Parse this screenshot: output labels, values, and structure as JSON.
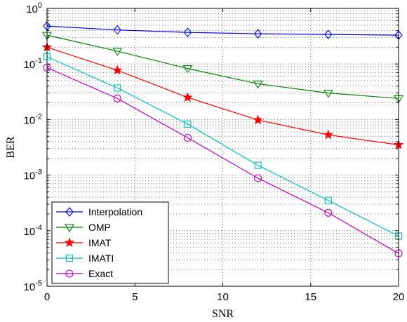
{
  "chart_data": {
    "type": "line",
    "xlabel": "SNR",
    "ylabel": "BER",
    "xlim": [
      0,
      20
    ],
    "ylim": [
      1e-05,
      1
    ],
    "yscale": "log",
    "grid": true,
    "legend_position": "bottom-left",
    "x": [
      0,
      4,
      8,
      12,
      16,
      20
    ],
    "x_ticks": [
      "0",
      "5",
      "10",
      "15",
      "20"
    ],
    "x_tick_values": [
      0,
      5,
      10,
      15,
      20
    ],
    "y_ticks": [
      {
        "value": 1e-05,
        "base": "10",
        "exp": "-5"
      },
      {
        "value": 0.0001,
        "base": "10",
        "exp": "-4"
      },
      {
        "value": 0.001,
        "base": "10",
        "exp": "-3"
      },
      {
        "value": 0.01,
        "base": "10",
        "exp": "-2"
      },
      {
        "value": 0.1,
        "base": "10",
        "exp": "-1"
      },
      {
        "value": 1,
        "base": "10",
        "exp": "0"
      }
    ],
    "series": [
      {
        "name": "Interpolation",
        "color": "#0000ff",
        "marker": "diamond",
        "values": [
          0.48,
          0.41,
          0.37,
          0.35,
          0.34,
          0.33
        ]
      },
      {
        "name": "OMP",
        "color": "#008000",
        "marker": "triangle-down",
        "values": [
          0.33,
          0.17,
          0.083,
          0.044,
          0.03,
          0.024
        ]
      },
      {
        "name": "IMAT",
        "color": "#ff0000",
        "marker": "star",
        "values": [
          0.2,
          0.077,
          0.025,
          0.0098,
          0.0053,
          0.0035
        ]
      },
      {
        "name": "IMATI",
        "color": "#00bfbf",
        "marker": "square",
        "values": [
          0.135,
          0.037,
          0.0083,
          0.0015,
          0.00035,
          8e-05
        ]
      },
      {
        "name": "Exact",
        "color": "#bf00bf",
        "marker": "circle",
        "values": [
          0.086,
          0.024,
          0.0047,
          0.00088,
          0.00021,
          3.9e-05
        ]
      }
    ]
  }
}
